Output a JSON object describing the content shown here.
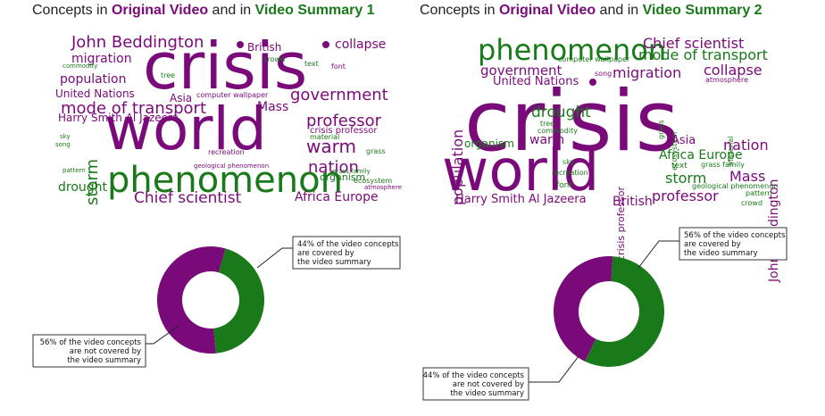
{
  "colors": {
    "original": "#7a0a7a",
    "summary": "#197a19"
  },
  "panels": [
    {
      "title": {
        "pre": "Concepts in ",
        "a": "Original Video",
        "mid": " and in ",
        "b": "Video Summary 1"
      },
      "donut": {
        "covered_pct": 44,
        "not_covered_pct": 56,
        "covered_label": [
          "44% of the video concepts",
          "are covered by",
          "the video summary"
        ],
        "not_covered_label": [
          "56% of the video concepts",
          "are not covered by",
          "the video summary"
        ]
      },
      "words": [
        {
          "t": "crisis",
          "c": "p"
        },
        {
          "t": "world",
          "c": "p"
        },
        {
          "t": "phenomenon",
          "c": "g"
        },
        {
          "t": "John Beddington",
          "c": "p"
        },
        {
          "t": "British",
          "c": "p"
        },
        {
          "t": "collapse",
          "c": "p"
        },
        {
          "t": "migration",
          "c": "p"
        },
        {
          "t": "crowd",
          "c": "g"
        },
        {
          "t": "commodity",
          "c": "g"
        },
        {
          "t": "text",
          "c": "g"
        },
        {
          "t": "font",
          "c": "p"
        },
        {
          "t": "tree",
          "c": "g"
        },
        {
          "t": "population",
          "c": "p"
        },
        {
          "t": "song",
          "c": "g"
        },
        {
          "t": "United Nations",
          "c": "p"
        },
        {
          "t": "government",
          "c": "p"
        },
        {
          "t": "Asia",
          "c": "p"
        },
        {
          "t": "computer wallpaper",
          "c": "p"
        },
        {
          "t": "mode of transport",
          "c": "p"
        },
        {
          "t": "Mass",
          "c": "p"
        },
        {
          "t": "Harry Smith Al Jazeera",
          "c": "p"
        },
        {
          "t": "professor",
          "c": "p"
        },
        {
          "t": "crisis professor",
          "c": "p"
        },
        {
          "t": "warm",
          "c": "p"
        },
        {
          "t": "material",
          "c": "g"
        },
        {
          "t": "storm",
          "c": "g"
        },
        {
          "t": "sky",
          "c": "g"
        },
        {
          "t": "grass",
          "c": "g"
        },
        {
          "t": "recreation",
          "c": "p"
        },
        {
          "t": "nation",
          "c": "p"
        },
        {
          "t": "pattern",
          "c": "g"
        },
        {
          "t": "geological phenomenon",
          "c": "p"
        },
        {
          "t": "grass family",
          "c": "g"
        },
        {
          "t": "organism",
          "c": "g"
        },
        {
          "t": "ecosystem",
          "c": "g"
        },
        {
          "t": "drought",
          "c": "g"
        },
        {
          "t": "atmosphere",
          "c": "p"
        },
        {
          "t": "Chief scientist",
          "c": "p"
        },
        {
          "t": "Africa Europe",
          "c": "p"
        }
      ]
    },
    {
      "title": {
        "pre": "Concepts in ",
        "a": "Original Video",
        "mid": " and in ",
        "b": "Video Summary 2"
      },
      "donut": {
        "covered_pct": 56,
        "not_covered_pct": 44,
        "covered_label": [
          "56% of the video concepts",
          "are covered by",
          "the video summary"
        ],
        "not_covered_label": [
          "44% of the video concepts",
          "are not covered by",
          "the video summary"
        ]
      },
      "words": [
        {
          "t": "phenomenon",
          "c": "g"
        },
        {
          "t": "Chief scientist",
          "c": "p"
        },
        {
          "t": "mode of transport",
          "c": "g"
        },
        {
          "t": "computer wallpaper",
          "c": "g"
        },
        {
          "t": "government",
          "c": "p"
        },
        {
          "t": "migration",
          "c": "p"
        },
        {
          "t": "collapse",
          "c": "p"
        },
        {
          "t": "song",
          "c": "p"
        },
        {
          "t": "United Nations",
          "c": "p"
        },
        {
          "t": "atmosphere",
          "c": "p"
        },
        {
          "t": "population",
          "c": "p"
        },
        {
          "t": "crisis",
          "c": "p"
        },
        {
          "t": "grass",
          "c": "g"
        },
        {
          "t": "ecosystem",
          "c": "g"
        },
        {
          "t": "material",
          "c": "g"
        },
        {
          "t": "John Beddington",
          "c": "p"
        },
        {
          "t": "drought",
          "c": "g"
        },
        {
          "t": "tree",
          "c": "g"
        },
        {
          "t": "commodity",
          "c": "g"
        },
        {
          "t": "crisis professor",
          "c": "p"
        },
        {
          "t": "organism",
          "c": "g"
        },
        {
          "t": "warm",
          "c": "p"
        },
        {
          "t": "Asia",
          "c": "p"
        },
        {
          "t": "nation",
          "c": "p"
        },
        {
          "t": "world",
          "c": "p"
        },
        {
          "t": "Africa Europe",
          "c": "g"
        },
        {
          "t": "text",
          "c": "g"
        },
        {
          "t": "grass family",
          "c": "g"
        },
        {
          "t": "sky",
          "c": "g"
        },
        {
          "t": "recreation",
          "c": "g"
        },
        {
          "t": "storm",
          "c": "g"
        },
        {
          "t": "Mass",
          "c": "p"
        },
        {
          "t": "font",
          "c": "g"
        },
        {
          "t": "geological phenomenon",
          "c": "g"
        },
        {
          "t": "pattern",
          "c": "g"
        },
        {
          "t": "professor",
          "c": "p"
        },
        {
          "t": "crowd",
          "c": "g"
        },
        {
          "t": "Harry Smith Al Jazeera",
          "c": "p"
        },
        {
          "t": "British",
          "c": "p"
        }
      ]
    }
  ],
  "chart_data": [
    {
      "type": "pie",
      "title": "",
      "categories": [
        "covered",
        "not covered"
      ],
      "values": [
        44,
        56
      ]
    },
    {
      "type": "pie",
      "title": "",
      "categories": [
        "covered",
        "not covered"
      ],
      "values": [
        56,
        44
      ]
    }
  ]
}
